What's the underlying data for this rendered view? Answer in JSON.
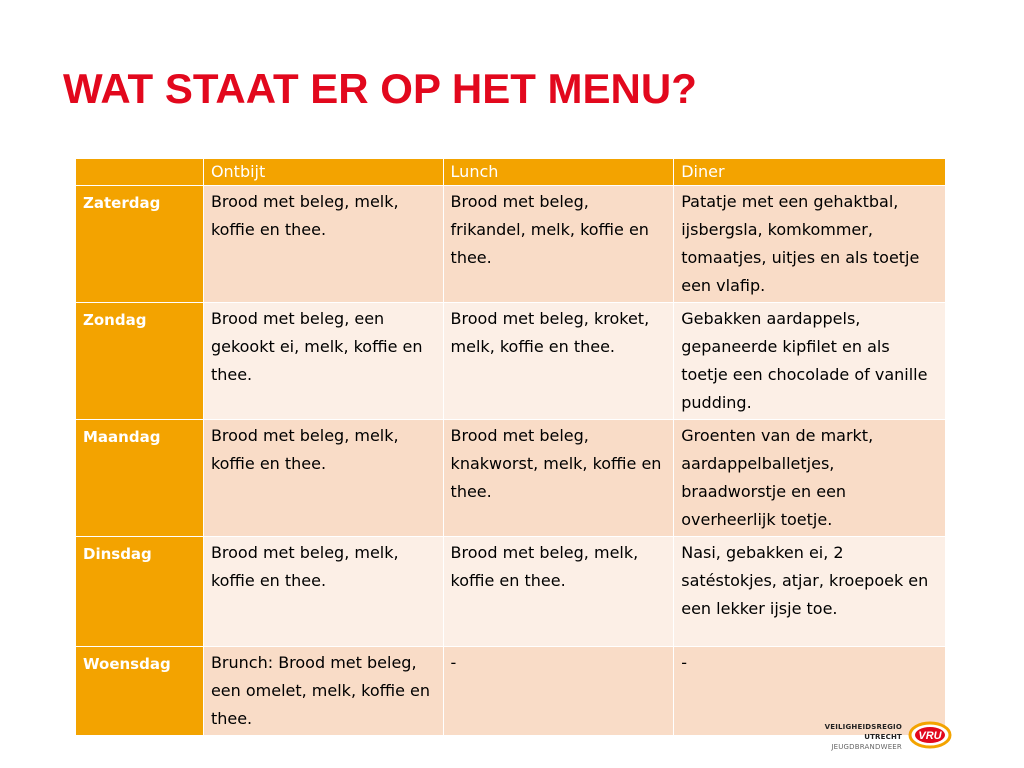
{
  "title": "WAT STAAT ER OP HET MENU?",
  "table": {
    "corner": "",
    "headers": [
      "Ontbijt",
      "Lunch",
      "Diner"
    ],
    "rows": [
      {
        "day": "Zaterdag",
        "ontbijt": "Brood met beleg, melk, koffie en thee.",
        "lunch": "Brood met beleg, frikandel, melk, koffie en thee.",
        "diner": "Patatje met een gehaktbal, ijsbergsla, komkommer, tomaatjes, uitjes en als toetje een vlafip."
      },
      {
        "day": "Zondag",
        "ontbijt": "Brood met beleg, een gekookt ei, melk, koffie en thee.",
        "lunch": "Brood met beleg, kroket, melk, koffie en thee.",
        "diner": "Gebakken aardappels, gepaneerde kipfilet en als toetje een chocolade of vanille pudding."
      },
      {
        "day": "Maandag",
        "ontbijt": "Brood met beleg, melk, koffie en thee.",
        "lunch": "Brood met beleg, knakworst, melk, koffie en thee.",
        "diner": "Groenten van de markt, aardappelballetjes, braadworstje en een overheerlijk toetje."
      },
      {
        "day": "Dinsdag",
        "ontbijt": "Brood met beleg, melk, koffie en thee.",
        "lunch": "Brood met beleg, melk, koffie en thee.",
        "diner": "Nasi, gebakken ei, 2 satéstokjes, atjar, kroepoek en een lekker ijsje toe."
      },
      {
        "day": "Woensdag",
        "ontbijt": "Brunch: Brood met beleg, een omelet, melk, koffie en thee.",
        "lunch": "-",
        "diner": "-"
      }
    ]
  },
  "footer": {
    "org_line1": "VEILIGHEIDSREGIO UTRECHT",
    "org_line2": "JEUGDBRANDWEER",
    "logo_mark_text": "VRU"
  },
  "colors": {
    "title": "#e2081d",
    "header": "#f3a300",
    "row_odd": "#f9dcc7",
    "row_even": "#fcefe6"
  }
}
